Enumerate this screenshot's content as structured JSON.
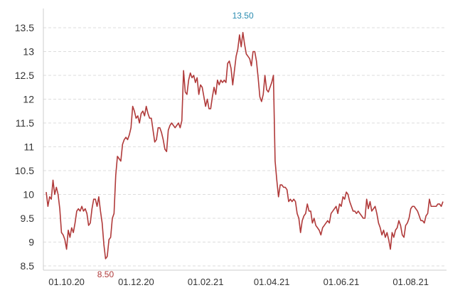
{
  "chart_data": {
    "type": "line",
    "title": "",
    "xlabel": "",
    "ylabel": "",
    "ylim": [
      8.5,
      13.5
    ],
    "yticks": [
      "8.5",
      "9",
      "9.5",
      "10",
      "10.5",
      "11",
      "11.5",
      "12",
      "12.5",
      "13",
      "13.5"
    ],
    "xticks": [
      {
        "label": "01.10.20",
        "index": 12
      },
      {
        "label": "01.12.20",
        "index": 53
      },
      {
        "label": "01.02.21",
        "index": 94
      },
      {
        "label": "01.04.21",
        "index": 133
      },
      {
        "label": "01.06.21",
        "index": 174
      },
      {
        "label": "01.08.21",
        "index": 215
      }
    ],
    "grid": {
      "horizontal": true,
      "style": "dashed"
    },
    "series": [
      {
        "color": "#b03a3a",
        "values": [
          10.05,
          9.75,
          9.95,
          9.9,
          10.3,
          10.0,
          10.15,
          10.0,
          9.7,
          9.2,
          9.15,
          9.05,
          8.85,
          9.25,
          9.1,
          9.3,
          9.2,
          9.4,
          9.65,
          9.7,
          9.65,
          9.75,
          9.65,
          9.7,
          9.6,
          9.35,
          9.4,
          9.7,
          9.9,
          9.9,
          9.75,
          9.95,
          9.65,
          9.4,
          8.95,
          8.65,
          8.7,
          9.05,
          9.1,
          9.5,
          9.6,
          10.4,
          10.8,
          10.75,
          10.7,
          11.05,
          11.15,
          11.2,
          11.15,
          11.25,
          11.4,
          11.85,
          11.75,
          11.6,
          11.65,
          11.5,
          11.7,
          11.75,
          11.65,
          11.85,
          11.7,
          11.6,
          11.6,
          11.35,
          11.1,
          11.15,
          11.4,
          11.4,
          11.3,
          11.15,
          10.95,
          10.9,
          11.35,
          11.45,
          11.5,
          11.45,
          11.4,
          11.45,
          11.5,
          11.4,
          11.55,
          12.6,
          12.15,
          12.1,
          12.4,
          12.55,
          12.45,
          12.5,
          12.35,
          12.45,
          12.1,
          12.3,
          12.25,
          12.05,
          11.85,
          12.0,
          11.8,
          11.8,
          12.05,
          12.25,
          12.1,
          12.4,
          12.3,
          12.4,
          12.35,
          12.4,
          12.35,
          12.75,
          12.8,
          12.65,
          12.3,
          12.6,
          12.9,
          13.05,
          13.35,
          13.1,
          13.4,
          13.15,
          12.95,
          12.9,
          12.85,
          12.7,
          13.0,
          13.0,
          12.8,
          12.45,
          12.05,
          11.95,
          12.1,
          12.5,
          12.2,
          12.15,
          12.25,
          12.35,
          12.5,
          10.7,
          10.3,
          9.95,
          10.2,
          10.2,
          10.15,
          10.15,
          10.1,
          9.85,
          9.9,
          9.85,
          9.9,
          9.85,
          9.6,
          9.5,
          9.2,
          9.45,
          9.55,
          9.6,
          9.8,
          9.65,
          9.65,
          9.4,
          9.5,
          9.35,
          9.3,
          9.25,
          9.15,
          9.3,
          9.35,
          9.4,
          9.45,
          9.4,
          9.6,
          9.65,
          9.7,
          9.75,
          9.6,
          9.8,
          9.75,
          9.95,
          9.9,
          10.05,
          10.0,
          9.85,
          9.75,
          9.65,
          9.65,
          9.6,
          9.65,
          9.6,
          9.55,
          9.5,
          9.5,
          9.9,
          9.7,
          9.85,
          9.65,
          9.7,
          9.75,
          9.6,
          9.4,
          9.3,
          9.15,
          9.25,
          9.1,
          9.2,
          9.05,
          8.85,
          9.2,
          9.1,
          9.25,
          9.3,
          9.45,
          9.35,
          9.15,
          9.1,
          9.35,
          9.4,
          9.5,
          9.7,
          9.75,
          9.75,
          9.7,
          9.65,
          9.55,
          9.45,
          9.45,
          9.4,
          9.55,
          9.6,
          9.9,
          9.75,
          9.75,
          9.75,
          9.75,
          9.8,
          9.8,
          9.75,
          9.85
        ]
      }
    ],
    "annotations": [
      {
        "text": "13.50",
        "index": 116,
        "value": 13.5,
        "position": "above",
        "color": "#2a8bb0"
      },
      {
        "text": "8.50",
        "index": 35,
        "value": 8.5,
        "position": "below",
        "color": "#b03a3a"
      }
    ]
  }
}
